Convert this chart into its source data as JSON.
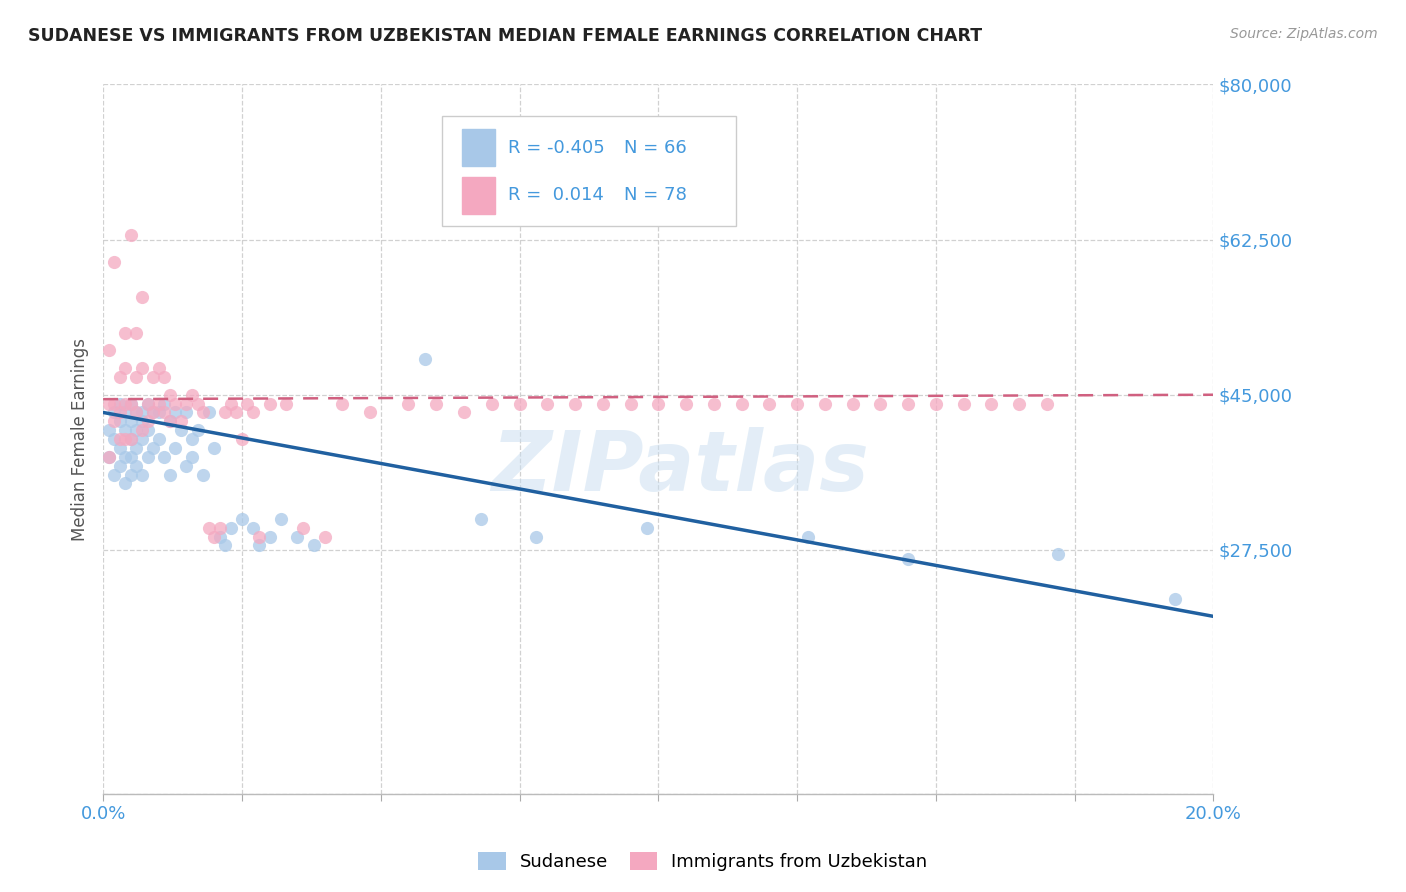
{
  "title": "SUDANESE VS IMMIGRANTS FROM UZBEKISTAN MEDIAN FEMALE EARNINGS CORRELATION CHART",
  "source": "Source: ZipAtlas.com",
  "ylabel": "Median Female Earnings",
  "xlim": [
    0.0,
    0.2
  ],
  "ylim": [
    0,
    80000
  ],
  "yticks": [
    0,
    27500,
    45000,
    62500,
    80000
  ],
  "ytick_labels": [
    "",
    "$27,500",
    "$45,000",
    "$62,500",
    "$80,000"
  ],
  "xticks": [
    0.0,
    0.025,
    0.05,
    0.075,
    0.1,
    0.125,
    0.15,
    0.175,
    0.2
  ],
  "xtick_labels": [
    "0.0%",
    "",
    "",
    "",
    "",
    "",
    "",
    "",
    "20.0%"
  ],
  "legend_label1": "Sudanese",
  "legend_label2": "Immigrants from Uzbekistan",
  "R1": "-0.405",
  "N1": "66",
  "R2": "0.014",
  "N2": "78",
  "color_blue": "#a8c8e8",
  "color_pink": "#f4a8c0",
  "color_line_blue": "#2060a0",
  "color_line_pink": "#d06080",
  "color_tick_label": "#4499dd",
  "watermark_text": "ZIPatlas",
  "background_color": "#ffffff",
  "grid_color": "#cccccc",
  "blue_x": [
    0.001,
    0.001,
    0.002,
    0.002,
    0.002,
    0.003,
    0.003,
    0.003,
    0.003,
    0.004,
    0.004,
    0.004,
    0.004,
    0.005,
    0.005,
    0.005,
    0.005,
    0.005,
    0.006,
    0.006,
    0.006,
    0.006,
    0.007,
    0.007,
    0.007,
    0.007,
    0.008,
    0.008,
    0.008,
    0.009,
    0.009,
    0.01,
    0.01,
    0.011,
    0.011,
    0.012,
    0.012,
    0.013,
    0.013,
    0.014,
    0.015,
    0.015,
    0.016,
    0.016,
    0.017,
    0.018,
    0.019,
    0.02,
    0.021,
    0.022,
    0.023,
    0.025,
    0.027,
    0.028,
    0.03,
    0.032,
    0.035,
    0.038,
    0.058,
    0.068,
    0.078,
    0.098,
    0.127,
    0.172,
    0.145,
    0.193
  ],
  "blue_y": [
    41000,
    38000,
    43000,
    40000,
    36000,
    42000,
    39000,
    37000,
    44000,
    43000,
    41000,
    38000,
    35000,
    42000,
    40000,
    38000,
    36000,
    44000,
    43000,
    41000,
    39000,
    37000,
    43000,
    42000,
    40000,
    36000,
    44000,
    41000,
    38000,
    43000,
    39000,
    43000,
    40000,
    44000,
    38000,
    42000,
    36000,
    43000,
    39000,
    41000,
    43000,
    37000,
    40000,
    38000,
    41000,
    36000,
    43000,
    39000,
    29000,
    28000,
    30000,
    31000,
    30000,
    28000,
    29000,
    31000,
    29000,
    28000,
    49000,
    31000,
    29000,
    30000,
    29000,
    27000,
    26500,
    22000
  ],
  "pink_x": [
    0.001,
    0.001,
    0.001,
    0.002,
    0.002,
    0.002,
    0.003,
    0.003,
    0.003,
    0.004,
    0.004,
    0.004,
    0.004,
    0.005,
    0.005,
    0.005,
    0.006,
    0.006,
    0.006,
    0.007,
    0.007,
    0.007,
    0.008,
    0.008,
    0.009,
    0.009,
    0.01,
    0.01,
    0.011,
    0.011,
    0.012,
    0.012,
    0.013,
    0.014,
    0.015,
    0.016,
    0.017,
    0.018,
    0.019,
    0.02,
    0.021,
    0.022,
    0.023,
    0.024,
    0.025,
    0.026,
    0.027,
    0.028,
    0.03,
    0.033,
    0.036,
    0.04,
    0.043,
    0.048,
    0.055,
    0.06,
    0.065,
    0.07,
    0.075,
    0.08,
    0.085,
    0.09,
    0.095,
    0.1,
    0.105,
    0.11,
    0.115,
    0.12,
    0.125,
    0.13,
    0.135,
    0.14,
    0.145,
    0.15,
    0.155,
    0.16,
    0.165,
    0.17
  ],
  "pink_y": [
    50000,
    44000,
    38000,
    60000,
    44000,
    42000,
    47000,
    43000,
    40000,
    52000,
    48000,
    44000,
    40000,
    63000,
    44000,
    40000,
    52000,
    47000,
    43000,
    56000,
    48000,
    41000,
    44000,
    42000,
    47000,
    43000,
    48000,
    44000,
    47000,
    43000,
    45000,
    42000,
    44000,
    42000,
    44000,
    45000,
    44000,
    43000,
    30000,
    29000,
    30000,
    43000,
    44000,
    43000,
    40000,
    44000,
    43000,
    29000,
    44000,
    44000,
    30000,
    29000,
    44000,
    43000,
    44000,
    44000,
    43000,
    44000,
    44000,
    44000,
    44000,
    44000,
    44000,
    44000,
    44000,
    44000,
    44000,
    44000,
    44000,
    44000,
    44000,
    44000,
    44000,
    44000,
    44000,
    44000,
    44000,
    44000
  ],
  "blue_trend_x": [
    0.0,
    0.2
  ],
  "blue_trend_y": [
    43000,
    20000
  ],
  "pink_trend_x": [
    0.0,
    0.2
  ],
  "pink_trend_y": [
    44500,
    45000
  ]
}
